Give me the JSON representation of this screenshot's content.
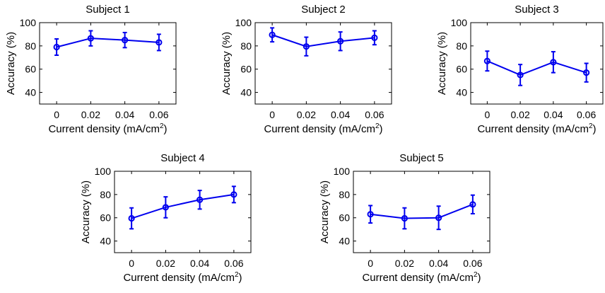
{
  "chart_data": [
    {
      "type": "line",
      "title": "Subject 1",
      "x": [
        "0",
        "0.02",
        "0.04",
        "0.06"
      ],
      "values": [
        79,
        86.5,
        85,
        83
      ],
      "errors": [
        7,
        6.5,
        6.5,
        7
      ],
      "xlabel": "Current density (mA/cm",
      "xlabel_sup": "2",
      "xlabel_close": ")",
      "ylabel": "Accuracy (%)",
      "yticks": [
        "40",
        "60",
        "80",
        "100"
      ],
      "ylim": [
        30,
        100
      ],
      "color": "#0000ee"
    },
    {
      "type": "line",
      "title": "Subject 2",
      "x": [
        "0",
        "0.02",
        "0.04",
        "0.06"
      ],
      "values": [
        89.5,
        79.5,
        84,
        87
      ],
      "errors": [
        6,
        8,
        8,
        6
      ],
      "xlabel": "Current density (mA/cm",
      "xlabel_sup": "2",
      "xlabel_close": ")",
      "ylabel": "Accuracy (%)",
      "yticks": [
        "40",
        "60",
        "80",
        "100"
      ],
      "ylim": [
        30,
        100
      ],
      "color": "#0000ee"
    },
    {
      "type": "line",
      "title": "Subject 3",
      "x": [
        "0",
        "0.02",
        "0.04",
        "0.06"
      ],
      "values": [
        67,
        55,
        66,
        57
      ],
      "errors": [
        8.5,
        9,
        9,
        8
      ],
      "xlabel": "Current density (mA/cm",
      "xlabel_sup": "2",
      "xlabel_close": ")",
      "ylabel": "Accuracy (%)",
      "yticks": [
        "40",
        "60",
        "80",
        "100"
      ],
      "ylim": [
        30,
        100
      ],
      "color": "#0000ee"
    },
    {
      "type": "line",
      "title": "Subject 4",
      "x": [
        "0",
        "0.02",
        "0.04",
        "0.06"
      ],
      "values": [
        59.5,
        69,
        75.5,
        80
      ],
      "errors": [
        9,
        9,
        8,
        7
      ],
      "xlabel": "Current density (mA/cm",
      "xlabel_sup": "2",
      "xlabel_close": ")",
      "ylabel": "Accuracy (%)",
      "yticks": [
        "40",
        "60",
        "80",
        "100"
      ],
      "ylim": [
        30,
        100
      ],
      "color": "#0000ee"
    },
    {
      "type": "line",
      "title": "Subject 5",
      "x": [
        "0",
        "0.02",
        "0.04",
        "0.06"
      ],
      "values": [
        63,
        59.5,
        60,
        71.5
      ],
      "errors": [
        7.5,
        9,
        10,
        8
      ],
      "xlabel": "Current density (mA/cm",
      "xlabel_sup": "2",
      "xlabel_close": ")",
      "ylabel": "Accuracy (%)",
      "yticks": [
        "40",
        "60",
        "80",
        "100"
      ],
      "ylim": [
        30,
        100
      ],
      "color": "#0000ee"
    }
  ]
}
